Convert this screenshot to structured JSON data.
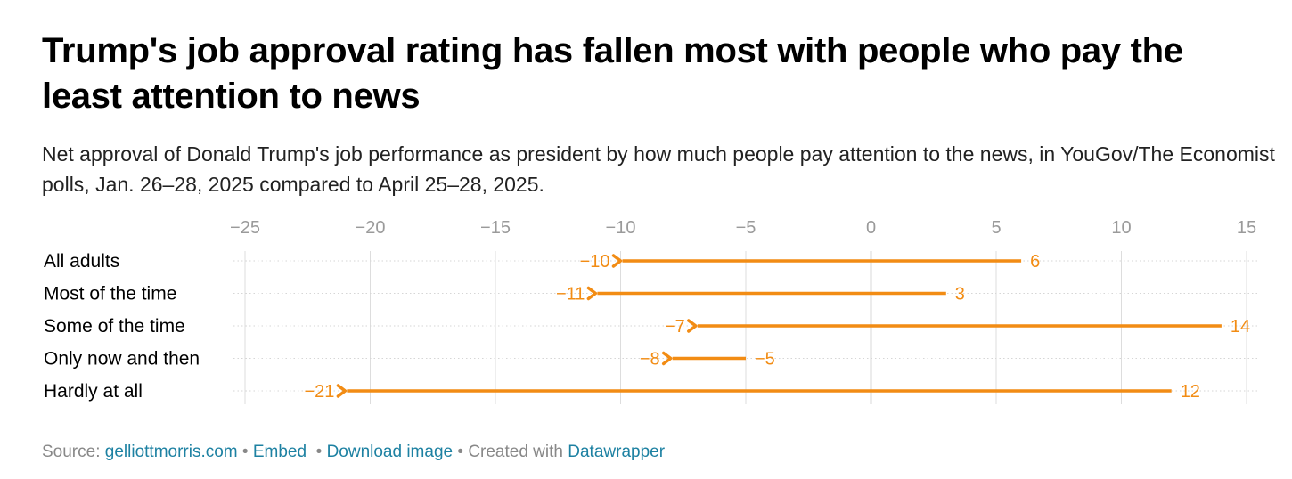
{
  "title": "Trump's job approval rating has fallen most with people who pay the least attention to news",
  "subtitle": "Net approval of Donald Trump's job performance as president by how much people pay attention to the news, in YouGov/The Economist polls, Jan. 26–28, 2025 compared to April 25–28, 2025.",
  "footer": {
    "source_label": "Source:",
    "source_link": "gelliottmorris.com",
    "separator": "•",
    "embed": "Embed",
    "download": "Download image",
    "created_with": "Created with",
    "datawrapper": "Datawrapper"
  },
  "colors": {
    "arrow": "#f28c14",
    "grid": "#dddddd",
    "zero_line": "#b3b3b3",
    "tick_label": "#9a9a9a",
    "link": "#1d81a2"
  },
  "chart_data": {
    "type": "arrow",
    "title": "Trump's job approval rating has fallen most with people who pay the least attention to news",
    "xlim": [
      -25,
      15
    ],
    "ticks": [
      -25,
      -20,
      -15,
      -10,
      -5,
      0,
      5,
      10,
      15
    ],
    "tick_labels": [
      "−25",
      "−20",
      "−15",
      "−10",
      "−5",
      "0",
      "5",
      "10",
      "15"
    ],
    "categories": [
      "All adults",
      "Most of the time",
      "Some of the time",
      "Only now and then",
      "Hardly at all"
    ],
    "series": [
      {
        "name": "Jan. 26–28, 2025",
        "values": [
          6,
          3,
          14,
          -5,
          12
        ],
        "labels": [
          "6",
          "3",
          "14",
          "−5",
          "12"
        ]
      },
      {
        "name": "April 25–28, 2025",
        "values": [
          -10,
          -11,
          -7,
          -8,
          -21
        ],
        "labels": [
          "−10",
          "−11",
          "−7",
          "−8",
          "−21"
        ]
      }
    ],
    "grid": true
  }
}
